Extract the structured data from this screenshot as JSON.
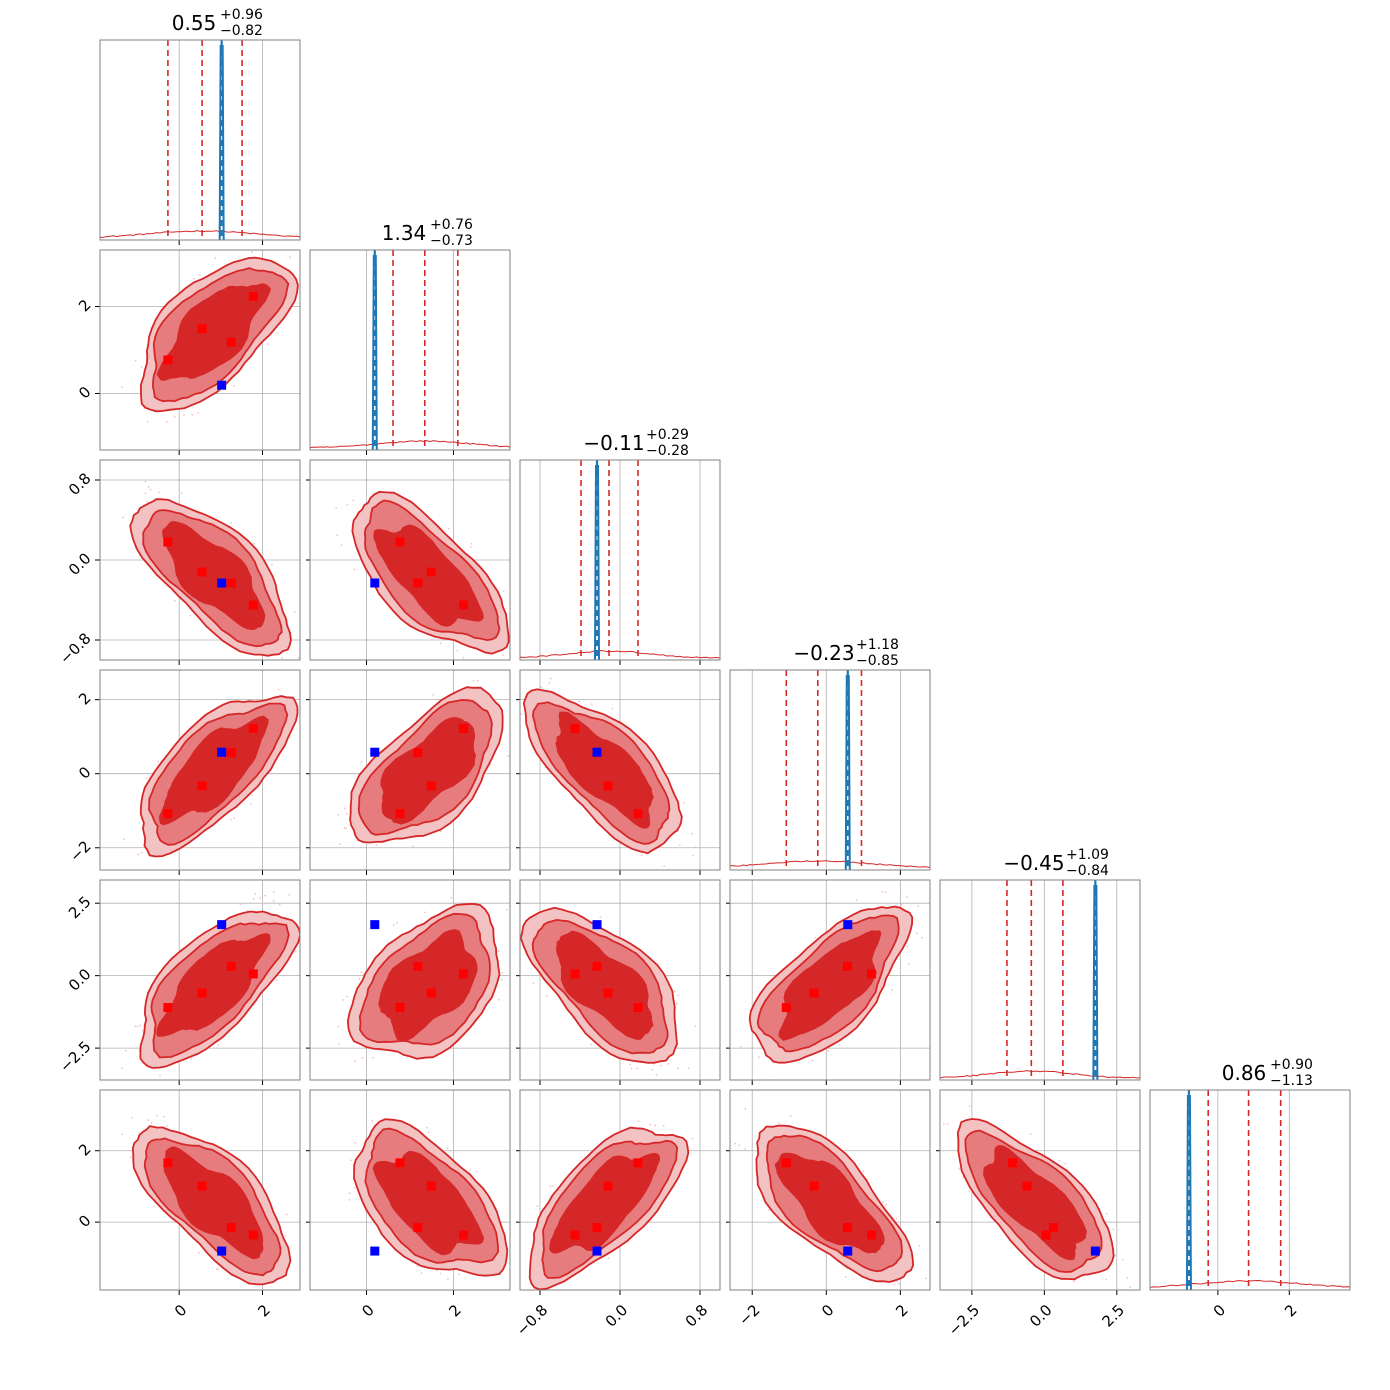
{
  "chart_data": {
    "type": "corner",
    "n_params": 6,
    "grid": true,
    "colors": {
      "posterior_fill_dark": "#d62728",
      "posterior_fill_mid": "#e67c7d",
      "posterior_fill_light": "#f3c3c4",
      "posterior_line": "#d62728",
      "quantile_line": "#d62728",
      "narrow_posterior": "#1f77b4",
      "truth_marker": "#0000ff",
      "mode_marker": "#ff0000",
      "grid": "#b0b0b0",
      "frame": "#808080"
    },
    "parameters": [
      {
        "title_value": "0.55",
        "title_plus": "+0.96",
        "title_minus": "−0.82",
        "range": [
          -1.9,
          2.9
        ],
        "ticks": [
          0,
          2
        ],
        "tick_labels": [
          "0",
          "2"
        ],
        "quantiles": [
          -0.27,
          0.55,
          1.51
        ],
        "narrow_value": 1.02,
        "truth": 1.02,
        "modes": [
          -0.27,
          0.55,
          1.25,
          1.78
        ]
      },
      {
        "title_value": "1.34",
        "title_plus": "+0.76",
        "title_minus": "−0.73",
        "range": [
          -1.3,
          3.3
        ],
        "ticks": [
          0,
          2
        ],
        "tick_labels": [
          "0",
          "2"
        ],
        "quantiles": [
          0.61,
          1.34,
          2.1
        ],
        "narrow_value": 0.19,
        "truth": 0.19,
        "modes": [
          0.77,
          1.49,
          1.18,
          2.23
        ]
      },
      {
        "title_value": "−0.11",
        "title_plus": "+0.29",
        "title_minus": "−0.28",
        "range": [
          -1.0,
          1.0
        ],
        "ticks": [
          -0.8,
          0.0,
          0.8
        ],
        "tick_labels": [
          "−0.8",
          "0.0",
          "0.8"
        ],
        "quantiles": [
          -0.39,
          -0.11,
          0.18
        ],
        "narrow_value": -0.23,
        "truth": -0.23,
        "modes": [
          0.18,
          -0.12,
          -0.23,
          -0.45
        ]
      },
      {
        "title_value": "−0.23",
        "title_plus": "+1.18",
        "title_minus": "−0.85",
        "range": [
          -2.6,
          2.8
        ],
        "ticks": [
          -2,
          0,
          2
        ],
        "tick_labels": [
          "−2",
          "0",
          "2"
        ],
        "quantiles": [
          -1.08,
          -0.23,
          0.95
        ],
        "narrow_value": 0.58,
        "truth": 0.58,
        "modes": [
          -1.08,
          -0.33,
          0.57,
          1.22
        ]
      },
      {
        "title_value": "−0.45",
        "title_plus": "+1.09",
        "title_minus": "−0.84",
        "range": [
          -3.6,
          3.3
        ],
        "ticks": [
          -2.5,
          0.0,
          2.5
        ],
        "tick_labels": [
          "−2.5",
          "0.0",
          "2.5"
        ],
        "quantiles": [
          -1.29,
          -0.45,
          0.64
        ],
        "narrow_value": 1.76,
        "truth": 1.76,
        "modes": [
          -1.1,
          -0.6,
          0.32,
          0.06
        ]
      },
      {
        "title_value": "0.86",
        "title_plus": "+0.90",
        "title_minus": "−1.13",
        "range": [
          -1.9,
          3.7
        ],
        "ticks": [
          0,
          2
        ],
        "tick_labels": [
          "0",
          "2"
        ],
        "quantiles": [
          -0.27,
          0.86,
          1.76
        ],
        "narrow_value": -0.81,
        "truth": -0.81,
        "modes": [
          1.66,
          1.01,
          -0.15,
          -0.36
        ]
      }
    ]
  }
}
